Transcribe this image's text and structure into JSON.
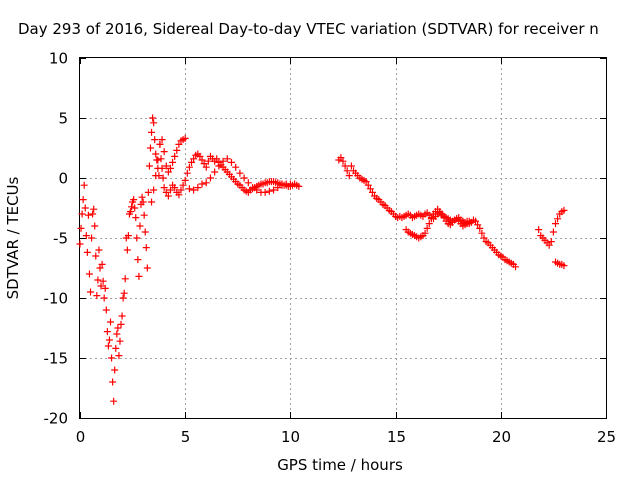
{
  "chart_data": {
    "type": "scatter",
    "title": "Day 293 of 2016, Sidereal Day-to-day VTEC variation (SDTVAR) for receiver n",
    "xlabel": "GPS time / hours",
    "ylabel": "SDTVAR / TECUs",
    "xlim": [
      0,
      25
    ],
    "ylim": [
      -20,
      10
    ],
    "xticks": [
      "0",
      "5",
      "10",
      "15",
      "20",
      "25"
    ],
    "yticks": [
      "10",
      "5",
      "0",
      "-5",
      "-10",
      "-15",
      "-20"
    ],
    "grid": true,
    "marker": "plus",
    "color": "#ff0000",
    "series": [
      {
        "x": [
          0.0,
          0.05,
          0.1,
          0.15,
          0.2,
          0.25,
          0.3,
          0.35,
          0.4,
          0.45,
          0.5,
          0.55,
          0.6,
          0.65,
          0.7,
          0.75,
          0.8,
          0.85,
          0.9,
          0.95,
          1.0,
          1.05,
          1.1,
          1.15,
          1.2,
          1.25,
          1.3,
          1.35,
          1.4,
          1.45,
          1.5,
          1.55,
          1.6,
          1.65,
          1.7,
          1.75,
          1.8,
          1.85,
          1.9,
          1.95,
          2.0,
          2.05,
          2.1,
          2.15,
          2.2,
          2.25,
          2.3,
          2.35,
          2.4,
          2.45,
          2.5,
          2.55,
          2.6,
          2.65,
          2.7,
          2.75,
          2.8,
          2.85,
          2.9,
          2.95,
          3.0,
          3.05,
          3.1,
          3.15,
          3.2,
          3.25,
          3.3,
          3.35,
          3.4,
          3.45,
          3.5,
          3.55,
          3.6,
          3.65,
          3.7,
          3.75,
          3.8,
          3.85,
          3.9,
          3.95,
          4.0,
          4.1,
          4.2,
          4.3,
          4.4,
          4.5,
          4.6,
          4.7,
          4.8,
          4.9,
          5.0,
          5.1,
          5.2,
          5.3,
          5.4,
          5.5,
          5.6,
          5.7,
          5.8,
          5.9,
          6.0,
          6.1,
          6.2,
          6.3,
          6.4,
          6.5,
          6.6,
          6.7,
          6.8,
          6.9,
          7.0,
          7.1,
          7.2,
          7.3,
          7.4,
          7.5,
          7.6,
          7.7,
          7.8,
          7.9,
          8.0,
          8.1,
          8.2,
          8.3,
          8.4,
          8.5,
          8.6,
          8.7,
          8.8,
          8.9,
          9.0,
          9.1,
          9.2,
          9.3,
          9.4,
          9.5,
          9.6,
          9.7,
          9.8,
          9.9,
          10.0,
          10.1,
          10.2,
          10.3,
          10.4
        ],
        "y": [
          -5.5,
          -4.2,
          -3.0,
          -1.8,
          -0.6,
          -2.5,
          -4.8,
          -6.2,
          -3.1,
          -8.0,
          -9.5,
          -5.0,
          -3.0,
          -2.6,
          -4.0,
          -6.5,
          -9.8,
          -8.5,
          -6.0,
          -7.5,
          -9.0,
          -7.2,
          -8.6,
          -10.0,
          -9.2,
          -11.0,
          -12.8,
          -14.0,
          -13.5,
          -12.0,
          -15.0,
          -17.0,
          -18.6,
          -16.0,
          -14.2,
          -13.0,
          -12.5,
          -14.8,
          -13.6,
          -12.2,
          -11.5,
          -10.0,
          -9.6,
          -8.4,
          -5.0,
          -6.0,
          -4.8,
          -3.0,
          -2.8,
          -2.4,
          -2.0,
          -1.8,
          -2.5,
          -3.3,
          -5.0,
          -6.8,
          -8.2,
          -4.0,
          -2.2,
          -1.6,
          -2.0,
          -3.1,
          -4.5,
          -5.8,
          -7.5,
          -1.2,
          1.0,
          2.5,
          3.8,
          5.0,
          4.6,
          3.2,
          2.0,
          1.5,
          0.8,
          0.2,
          2.8,
          1.6,
          0.8,
          0.0,
          -0.8,
          -1.2,
          -1.5,
          -1.0,
          -0.6,
          -0.8,
          -1.2,
          -1.4,
          -1.0,
          -0.6,
          -0.2,
          0.4,
          0.9,
          1.3,
          1.6,
          1.9,
          2.0,
          1.8,
          1.5,
          1.2,
          0.9,
          1.4,
          1.8,
          1.6,
          1.4,
          1.6,
          1.3,
          1.1,
          0.9,
          0.7,
          0.5,
          0.3,
          0.1,
          -0.1,
          -0.3,
          -0.5,
          -0.6,
          -0.8,
          -1.0,
          -1.1,
          -1.2,
          -1.0,
          -0.9,
          -0.8,
          -0.7,
          -0.6,
          -0.5,
          -0.5,
          -0.4,
          -0.4,
          -0.3,
          -0.3,
          -0.3,
          -0.4,
          -0.4,
          -0.5,
          -0.5,
          -0.6,
          -0.6,
          -0.7,
          -0.7,
          -0.6,
          -0.5,
          -0.6,
          -0.7
        ]
      },
      {
        "x": [
          3.4,
          3.5,
          3.6,
          3.7,
          3.8,
          3.9,
          4.0,
          4.1,
          4.2,
          4.3,
          4.4,
          4.5,
          4.6,
          4.7,
          4.8,
          4.9,
          5.0,
          5.2,
          5.4,
          5.6,
          5.8,
          6.0,
          6.2,
          6.4,
          6.6,
          6.8,
          7.0,
          7.2,
          7.4,
          7.6,
          7.8,
          8.0,
          8.2,
          8.4,
          8.6,
          8.8,
          9.0,
          9.2,
          9.4,
          9.6,
          9.8,
          10.0
        ],
        "y": [
          -2.0,
          -1.0,
          0.2,
          1.5,
          2.8,
          3.2,
          2.2,
          1.0,
          0.5,
          0.8,
          1.3,
          1.8,
          2.3,
          2.8,
          3.1,
          3.2,
          3.3,
          -0.9,
          -1.0,
          -0.8,
          -0.5,
          -0.4,
          0.0,
          0.5,
          1.0,
          1.4,
          1.6,
          1.3,
          0.9,
          0.4,
          0.0,
          -0.4,
          -0.8,
          -1.0,
          -1.2,
          -1.2,
          -1.1,
          -1.0,
          -0.8,
          -0.6,
          -0.5,
          -0.5
        ]
      },
      {
        "x": [
          12.3,
          12.4,
          12.5,
          12.6,
          12.7,
          12.8,
          12.9,
          13.0,
          13.1,
          13.2,
          13.3,
          13.4,
          13.5,
          13.6,
          13.7,
          13.8,
          13.9,
          14.0,
          14.1,
          14.2,
          14.3,
          14.4,
          14.5,
          14.6,
          14.7,
          14.8,
          14.9,
          15.0,
          15.1,
          15.2,
          15.3,
          15.4,
          15.5,
          15.6,
          15.7,
          15.8,
          15.9,
          16.0,
          16.1,
          16.2,
          16.3,
          16.4,
          16.5,
          16.6,
          16.7,
          16.8,
          16.9,
          17.0,
          17.1,
          17.2,
          17.3,
          17.4,
          17.5,
          17.6,
          17.7,
          17.8,
          17.9,
          18.0,
          18.1,
          18.2,
          18.3,
          18.4,
          18.5,
          18.6,
          18.7,
          18.8,
          18.9,
          19.0,
          19.1,
          19.2,
          19.3,
          19.4,
          19.5,
          19.6,
          19.7,
          19.8,
          19.9,
          20.0,
          20.1,
          20.2,
          20.3,
          20.4,
          20.5,
          20.6,
          20.7
        ],
        "y": [
          1.5,
          1.7,
          1.4,
          1.0,
          0.6,
          0.2,
          1.0,
          0.6,
          0.4,
          0.2,
          0.0,
          -0.1,
          -0.2,
          -0.3,
          -0.6,
          -0.9,
          -1.2,
          -1.5,
          -1.7,
          -1.8,
          -2.0,
          -2.2,
          -2.3,
          -2.5,
          -2.7,
          -2.8,
          -3.0,
          -3.2,
          -3.3,
          -3.2,
          -3.3,
          -3.2,
          -3.1,
          -3.0,
          -3.1,
          -3.3,
          -3.2,
          -3.1,
          -3.0,
          -3.1,
          -3.2,
          -3.0,
          -2.9,
          -3.1,
          -3.3,
          -3.4,
          -3.2,
          -3.0,
          -2.9,
          -3.1,
          -3.3,
          -3.6,
          -3.8,
          -3.9,
          -3.7,
          -3.5,
          -3.4,
          -3.6,
          -3.8,
          -4.0,
          -3.9,
          -3.8,
          -3.8,
          -3.7,
          -3.5,
          -3.6,
          -3.9,
          -4.2,
          -4.6,
          -5.0,
          -5.3,
          -5.4,
          -5.6,
          -5.8,
          -6.0,
          -6.2,
          -6.4,
          -6.5,
          -6.6,
          -6.8,
          -6.9,
          -7.0,
          -7.1,
          -7.2,
          -7.4
        ]
      },
      {
        "x": [
          15.5,
          15.6,
          15.7,
          15.8,
          15.9,
          16.0,
          16.1,
          16.2,
          16.3,
          16.4,
          16.5,
          16.6,
          16.7,
          16.8,
          16.9,
          17.0,
          17.1,
          17.2,
          17.3,
          17.4,
          17.5,
          17.6,
          17.7,
          17.8,
          17.9,
          18.0,
          18.1,
          18.2,
          18.3,
          18.4,
          18.5
        ],
        "y": [
          -4.3,
          -4.5,
          -4.6,
          -4.7,
          -4.8,
          -4.9,
          -5.0,
          -4.9,
          -4.8,
          -4.6,
          -4.2,
          -3.8,
          -3.4,
          -3.0,
          -2.8,
          -2.6,
          -2.8,
          -3.0,
          -3.2,
          -3.3,
          -3.4,
          -3.5,
          -3.6,
          -3.5,
          -3.4,
          -3.3,
          -3.5,
          -3.6,
          -3.7,
          -3.6,
          -3.6
        ]
      },
      {
        "x": [
          21.8,
          21.9,
          22.0,
          22.1,
          22.2,
          22.3,
          22.4,
          22.5,
          22.6,
          22.7,
          22.8,
          22.9,
          23.0,
          22.6,
          22.7,
          22.8,
          22.9,
          23.0
        ],
        "y": [
          -4.3,
          -4.8,
          -5.0,
          -5.2,
          -5.4,
          -5.6,
          -5.3,
          -4.5,
          -3.8,
          -3.4,
          -3.0,
          -2.8,
          -2.7,
          -7.0,
          -7.1,
          -7.2,
          -7.2,
          -7.3
        ]
      }
    ]
  }
}
